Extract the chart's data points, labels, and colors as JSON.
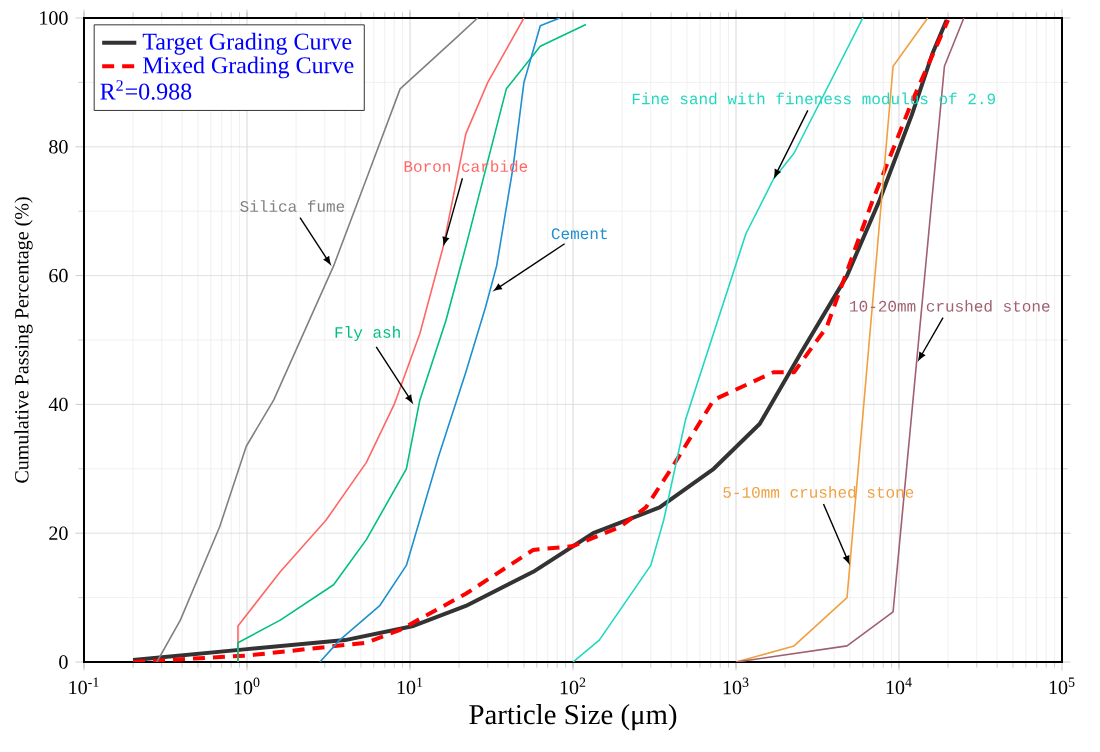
{
  "chart_data": {
    "type": "line",
    "xlabel": "Particle Size (μm)",
    "ylabel": "Cumulative Passing Percentage (%)",
    "log": "x",
    "xlim": [
      0.1,
      100000
    ],
    "ylim": [
      0,
      100
    ],
    "xticks": [
      {
        "value": 0.1,
        "label": "10$^{-1}$"
      },
      {
        "value": 1,
        "label": "10$^{0}$"
      },
      {
        "value": 10,
        "label": "10$^{1}$"
      },
      {
        "value": 100,
        "label": "10$^{2}$"
      },
      {
        "value": 1000,
        "label": "10$^{3}$"
      },
      {
        "value": 10000,
        "label": "10$^{4}$"
      },
      {
        "value": 100000,
        "label": "10$^{5}$"
      }
    ],
    "yticks": [
      0,
      20,
      40,
      60,
      80,
      100
    ],
    "grid": true,
    "legend": "top left",
    "annotations": [
      "R$^{2}$=0.988"
    ],
    "series": [
      {
        "name": "Target Grading Curve",
        "color": "#333333",
        "x": [
          0.2,
          1,
          4,
          10.5,
          22,
          57,
          133,
          340,
          730,
          1400,
          2500,
          4800,
          7600,
          12000,
          16000,
          19600
        ],
        "values": [
          0.3,
          2,
          3.4,
          5.6,
          8.7,
          14,
          20,
          24,
          30,
          37,
          48,
          60,
          71.7,
          85,
          94.4,
          99.7
        ]
      },
      {
        "name": "Mixed Grading Curve",
        "color": "#ff0000",
        "line_style": "dashed",
        "x": [
          0.2,
          1,
          5.4,
          8.7,
          22,
          57,
          100,
          195,
          280,
          410,
          730,
          1700,
          2270,
          3600,
          6900,
          12000,
          20000
        ],
        "values": [
          0,
          1,
          3,
          5,
          10.6,
          17.4,
          18,
          21,
          24,
          30.4,
          40.7,
          45,
          45,
          52,
          71.7,
          87,
          99.7
        ]
      },
      {
        "name": "Silica fume",
        "color": "#808080",
        "x": [
          0.28,
          0.39,
          0.68,
          0.99,
          1.46,
          3.4,
          5.4,
          8.7,
          18.6,
          26
        ],
        "values": [
          0,
          6.5,
          21,
          33.5,
          40.7,
          61.5,
          75,
          89,
          96.6,
          100
        ]
      },
      {
        "name": "Boron carbide",
        "color": "#ff6666",
        "x": [
          0.88,
          0.88,
          1.6,
          3.05,
          5.4,
          8,
          11.5,
          16,
          22,
          30,
          50
        ],
        "values": [
          0,
          5.6,
          14,
          22,
          31,
          40,
          51,
          64.5,
          82,
          90,
          100
        ]
      },
      {
        "name": "Fly ash",
        "color": "#00c080",
        "x": [
          0.88,
          0.88,
          1.6,
          3.4,
          5.4,
          9.5,
          11.5,
          16.6,
          22,
          39,
          63,
          120
        ],
        "values": [
          0,
          3,
          6.5,
          12,
          19,
          30,
          40.7,
          53,
          64.5,
          89,
          95.6,
          99
        ]
      },
      {
        "name": "Cement",
        "color": "#1f8fd0",
        "x": [
          2.8,
          3.7,
          6.5,
          9.5,
          15,
          22,
          29,
          34,
          43,
          50,
          63,
          83
        ],
        "values": [
          0,
          3.4,
          8.7,
          15,
          32,
          45,
          55,
          61.5,
          77,
          90,
          98.8,
          100
        ]
      },
      {
        "name": "Fine sand with fineness modulus of 2.9",
        "color": "#20d8c0",
        "x": [
          100,
          145,
          300,
          360,
          490,
          1150,
          1700,
          2270,
          6000
        ],
        "values": [
          0,
          3.4,
          15,
          22,
          37.6,
          66.5,
          75,
          79,
          100
        ]
      },
      {
        "name": "5-10mm crushed stone",
        "color": "#f0a040",
        "x": [
          1000,
          1400,
          2270,
          4800,
          9200,
          15000
        ],
        "values": [
          0,
          1,
          2.5,
          10,
          92.5,
          100
        ]
      },
      {
        "name": "10-20mm crushed stone",
        "color": "#a06070",
        "x": [
          1000,
          4800,
          9200,
          19000,
          25000
        ],
        "values": [
          0,
          2.5,
          7.8,
          92.5,
          100
        ]
      }
    ]
  }
}
